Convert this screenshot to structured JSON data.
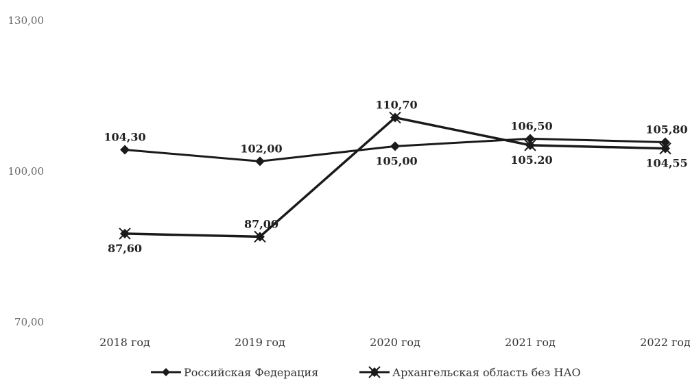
{
  "chart_data": {
    "type": "line",
    "categories": [
      "2018 год",
      "2019 год",
      "2020 год",
      "2021 год",
      "2022 год"
    ],
    "ylim": [
      70,
      130
    ],
    "y_ticks": [
      "70,00",
      "100,00",
      "130,00"
    ],
    "grid": false,
    "legend_position": "bottom",
    "series": [
      {
        "name": "Российская Федерация",
        "values": [
          104.3,
          102.0,
          105.0,
          106.5,
          105.8
        ],
        "labels": [
          "104,30",
          "102,00",
          "105,00",
          "106,50",
          "105,80"
        ],
        "label_side": [
          "above",
          "above",
          "below",
          "above",
          "above"
        ],
        "marker": "diamond",
        "color": "#1a1a1a"
      },
      {
        "name": "Архангельская область без НАО",
        "values": [
          87.6,
          87.0,
          110.7,
          105.2,
          104.55
        ],
        "labels": [
          "87,60",
          "87,00",
          "110,70",
          "105.20",
          "104,55"
        ],
        "label_side": [
          "below",
          "above",
          "above",
          "below",
          "below"
        ],
        "marker": "star",
        "color": "#1a1a1a"
      }
    ]
  }
}
